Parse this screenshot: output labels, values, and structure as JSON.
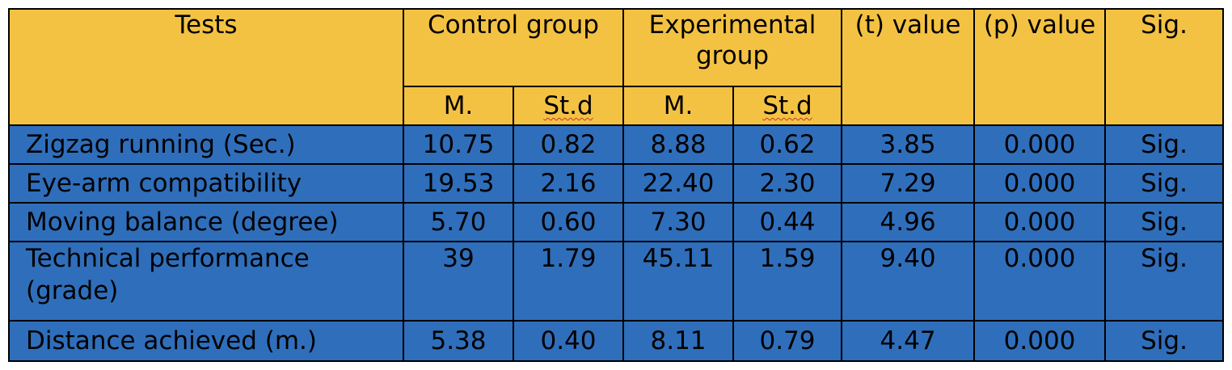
{
  "table": {
    "headers": {
      "tests": "Tests",
      "control_group": "Control group",
      "experimental_group": "Experimental group",
      "t_value": "(t) value",
      "p_value": "(p) value",
      "sig": "Sig.",
      "control_mean": "M.",
      "control_std": "St.d",
      "experimental_mean": "M.",
      "experimental_std": "St.d"
    },
    "rows": [
      {
        "test": "Zigzag running (Sec.)",
        "control_m": "10.75",
        "control_sd": "0.82",
        "exp_m": "8.88",
        "exp_sd": "0.62",
        "t": "3.85",
        "p": "0.000",
        "sig": "Sig."
      },
      {
        "test": "Eye-arm compatibility",
        "control_m": "19.53",
        "control_sd": "2.16",
        "exp_m": "22.40",
        "exp_sd": "2.30",
        "t": "7.29",
        "p": "0.000",
        "sig": "Sig."
      },
      {
        "test": "Moving balance (degree)",
        "control_m": "5.70",
        "control_sd": "0.60",
        "exp_m": "7.30",
        "exp_sd": "0.44",
        "t": "4.96",
        "p": "0.000",
        "sig": "Sig."
      },
      {
        "test": "Technical performance (grade)",
        "control_m": "39",
        "control_sd": "1.79",
        "exp_m": "45.11",
        "exp_sd": "1.59",
        "t": "9.40",
        "p": "0.000",
        "sig": "Sig."
      },
      {
        "test": "Distance achieved (m.)",
        "control_m": "5.38",
        "control_sd": "0.40",
        "exp_m": "8.11",
        "exp_sd": "0.79",
        "t": "4.47",
        "p": "0.000",
        "sig": "Sig."
      }
    ]
  },
  "colors": {
    "header_bg": "#F4C243",
    "body_bg": "#2F6EBA",
    "border": "#000000"
  }
}
